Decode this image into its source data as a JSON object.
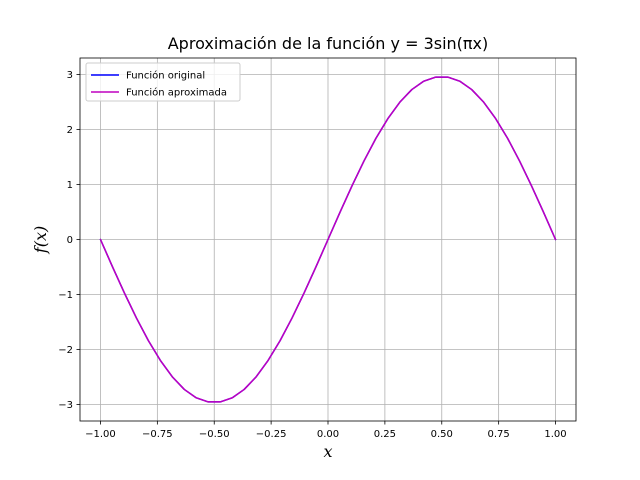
{
  "chart_data": {
    "type": "line",
    "title": "Aproximación de la función y = 3sin(πx)",
    "xlabel": "x",
    "ylabel": "f(x)",
    "xlim": [
      -1.09,
      1.09
    ],
    "ylim": [
      -3.3,
      3.3
    ],
    "xticks": [
      -1.0,
      -0.75,
      -0.5,
      -0.25,
      0.0,
      0.25,
      0.5,
      0.75,
      1.0
    ],
    "xtick_labels": [
      "−1.00",
      "−0.75",
      "−0.50",
      "−0.25",
      "0.00",
      "0.25",
      "0.50",
      "0.75",
      "1.00"
    ],
    "yticks": [
      -3,
      -2,
      -1,
      0,
      1,
      2,
      3
    ],
    "ytick_labels": [
      "−3",
      "−2",
      "−1",
      "0",
      "1",
      "2",
      "3"
    ],
    "grid": true,
    "legend_position": "top-left",
    "x": [
      -1.0,
      -0.9474,
      -0.8947,
      -0.8421,
      -0.7895,
      -0.7368,
      -0.6842,
      -0.6316,
      -0.5789,
      -0.5263,
      -0.4737,
      -0.4211,
      -0.3684,
      -0.3158,
      -0.2632,
      -0.2105,
      -0.1579,
      -0.1053,
      -0.0526,
      0.0,
      0.0526,
      0.1053,
      0.1579,
      0.2105,
      0.2632,
      0.3158,
      0.3684,
      0.4211,
      0.4737,
      0.5263,
      0.5789,
      0.6316,
      0.6842,
      0.7368,
      0.7895,
      0.8421,
      0.8947,
      0.9474,
      1.0
    ],
    "series": [
      {
        "name": "Función original",
        "color": "#0000ff",
        "values": [
          0.0,
          -0.494,
          -0.974,
          -1.426,
          -1.839,
          -2.198,
          -2.497,
          -2.726,
          -2.879,
          -2.953,
          -2.953,
          -2.879,
          -2.726,
          -2.497,
          -2.198,
          -1.839,
          -1.426,
          -0.974,
          -0.494,
          0.0,
          0.494,
          0.974,
          1.426,
          1.839,
          2.198,
          2.497,
          2.726,
          2.879,
          2.953,
          2.953,
          2.879,
          2.726,
          2.497,
          2.198,
          1.839,
          1.426,
          0.974,
          0.494,
          0.0
        ]
      },
      {
        "name": "Función aproximada",
        "color": "#bf00bf",
        "values": [
          0.0,
          -0.494,
          -0.974,
          -1.426,
          -1.839,
          -2.198,
          -2.497,
          -2.726,
          -2.879,
          -2.953,
          -2.953,
          -2.879,
          -2.726,
          -2.497,
          -2.198,
          -1.839,
          -1.426,
          -0.974,
          -0.494,
          0.0,
          0.494,
          0.974,
          1.426,
          1.839,
          2.198,
          2.497,
          2.726,
          2.879,
          2.953,
          2.953,
          2.879,
          2.726,
          2.497,
          2.198,
          1.839,
          1.426,
          0.974,
          0.494,
          0.0
        ]
      }
    ]
  }
}
